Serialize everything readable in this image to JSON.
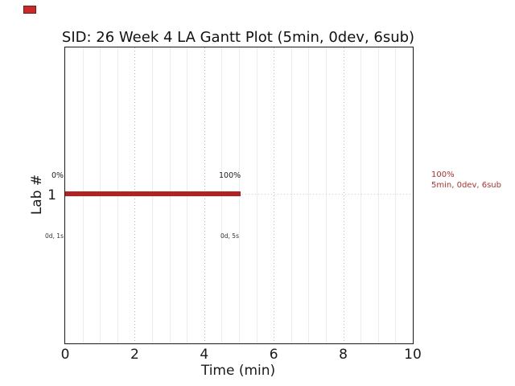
{
  "figure": {
    "background": "#ffffff",
    "legend_swatch_color": "#cf2727"
  },
  "chart_data": {
    "type": "bar",
    "subtype": "gantt-horizontal",
    "title": "SID: 26 Week 4 LA Gantt Plot (5min, 0dev, 6sub)",
    "xlabel": "Time (min)",
    "ylabel": "Lab #",
    "xlim": [
      0,
      10
    ],
    "xticks": [
      0,
      2,
      4,
      6,
      8,
      10
    ],
    "ytick_labels": [
      "1"
    ],
    "grid": {
      "minor_step": 0.5,
      "major_step": 2,
      "minor_color": "#ececec",
      "major_color": "#b5b5b5",
      "row_line_color": "#cccccc"
    },
    "bars": [
      {
        "lab": "1",
        "start_min": 0,
        "end_min": 5,
        "color": "#b22222",
        "start_label": "0%",
        "end_label": "100%",
        "start_time_label": "0d, 1s",
        "end_time_label": "0d, 5s"
      }
    ],
    "legend_note": {
      "line1": "100%",
      "line2": "5min, 0dev, 6sub",
      "color": "#bb2f2a"
    }
  }
}
